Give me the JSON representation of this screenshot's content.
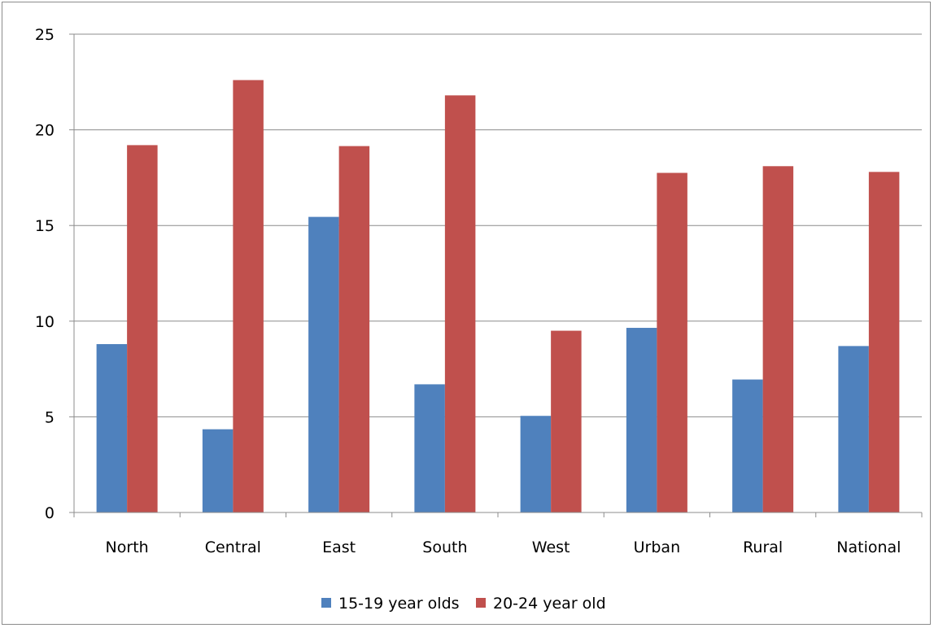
{
  "chart_data": {
    "type": "bar",
    "title": "",
    "xlabel": "",
    "ylabel": "",
    "categories": [
      "North",
      "Central",
      "East",
      "South",
      "West",
      "Urban",
      "Rural",
      "National"
    ],
    "series": [
      {
        "name": "15-19 year olds",
        "color": "#4f81bd",
        "values": [
          8.8,
          4.35,
          15.45,
          6.7,
          5.05,
          9.65,
          6.95,
          8.7
        ]
      },
      {
        "name": "20-24 year old",
        "color": "#c0504d",
        "values": [
          19.2,
          22.6,
          19.15,
          21.8,
          9.5,
          17.75,
          18.1,
          17.8
        ]
      }
    ],
    "ylim": [
      0,
      25
    ],
    "yticks": [
      "0",
      "5",
      "10",
      "15",
      "20",
      "25"
    ],
    "grid": true,
    "legend_position": "bottom"
  }
}
